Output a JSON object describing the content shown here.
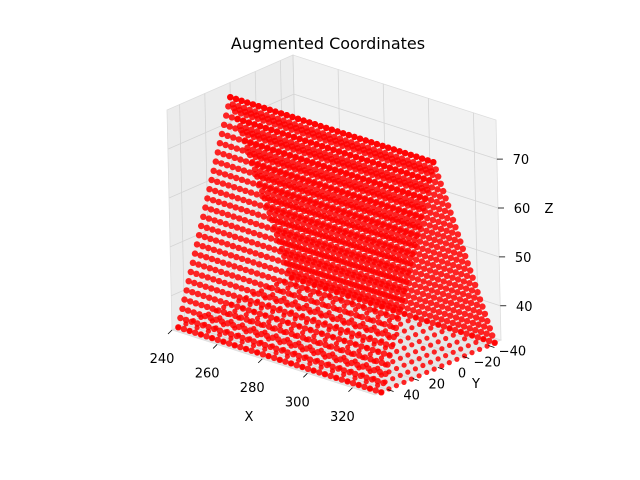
{
  "chart_data": {
    "type": "scatter",
    "projection": "3d",
    "title": "Augmented Coordinates",
    "xlabel": "X",
    "ylabel": "Y",
    "zlabel": "Z",
    "xlim": [
      240,
      330
    ],
    "ylim": [
      -50,
      50
    ],
    "zlim": [
      33,
      78
    ],
    "xticks": [
      "240",
      "260",
      "280",
      "300",
      "320"
    ],
    "yticks": [
      "−40",
      "−20",
      "0",
      "20",
      "40"
    ],
    "zticks": [
      "40",
      "50",
      "60",
      "70"
    ],
    "grid": true,
    "marker_color": "#ff0000",
    "series": [
      {
        "shape": "triangular prism",
        "x_range": [
          240,
          330
        ],
        "y_range": [
          -45,
          45
        ],
        "z_base": 33,
        "z_ridge": 75,
        "ridge_y": 0
      }
    ]
  }
}
